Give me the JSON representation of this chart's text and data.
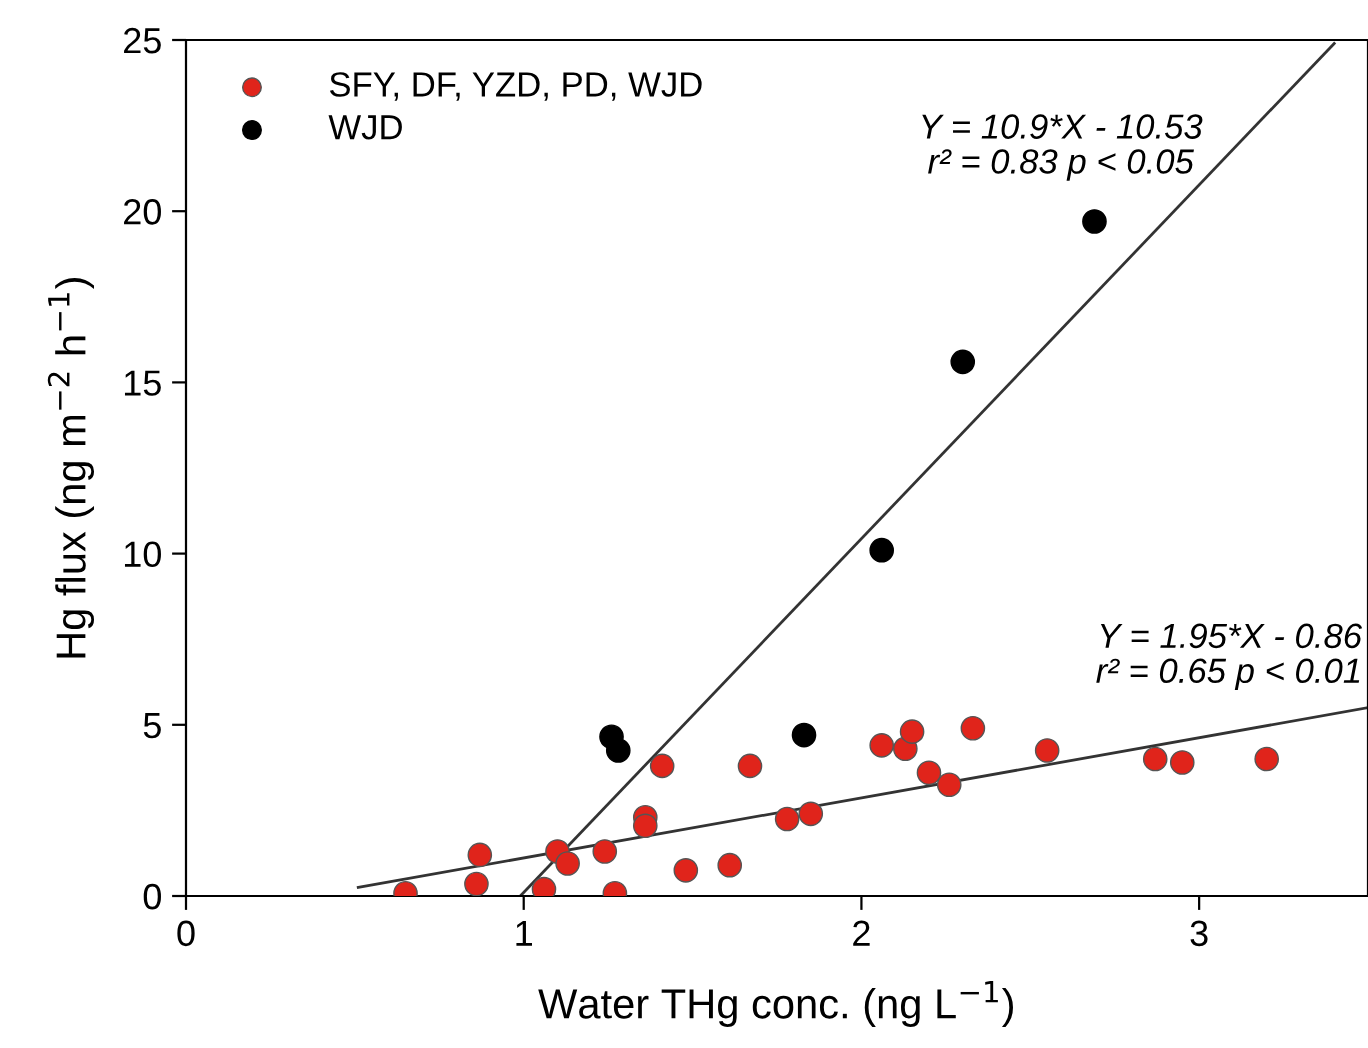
{
  "chart_data": {
    "type": "scatter",
    "xlabel": "Water THg conc. (ng L$^{−1}$)",
    "ylabel": "Hg flux (ng m$^{−2}$ h$^{−1}$)",
    "xlim": [
      0,
      3.5
    ],
    "ylim": [
      0,
      25
    ],
    "xticks": [
      0,
      1,
      2,
      3
    ],
    "yticks": [
      0,
      5,
      10,
      15,
      20,
      25
    ],
    "legend": "top left",
    "marker": "circle",
    "series": [
      {
        "name": "SFY, DF, YZD, PD, WJD",
        "color": "#e0241b",
        "x": [
          0.65,
          0.87,
          0.86,
          1.06,
          1.1,
          1.13,
          1.24,
          1.27,
          1.36,
          1.36,
          1.41,
          1.48,
          1.61,
          1.67,
          1.78,
          1.85,
          2.06,
          2.13,
          2.15,
          2.2,
          2.26,
          2.33,
          2.55,
          2.87,
          2.95,
          3.2
        ],
        "values": [
          0.08,
          1.2,
          0.35,
          0.2,
          1.3,
          0.95,
          1.3,
          0.08,
          2.3,
          2.05,
          3.8,
          0.75,
          0.9,
          3.8,
          2.25,
          2.4,
          4.4,
          4.3,
          4.8,
          3.6,
          3.25,
          4.9,
          4.25,
          4.0,
          3.9,
          4.0
        ]
      },
      {
        "name": "WJD",
        "color": "#000000",
        "x": [
          1.26,
          1.28,
          1.83,
          2.06,
          2.3,
          2.69
        ],
        "values": [
          4.65,
          4.25,
          4.7,
          10.1,
          15.6,
          19.7
        ]
      },
      {
        "type": "line",
        "color": "#333333",
        "marker": "none",
        "x": [
          0.51,
          3.5
        ],
        "values": [
          0.25,
          5.5
        ]
      },
      {
        "type": "line",
        "color": "#333333",
        "marker": "none",
        "x": [
          0.99,
          3.4
        ],
        "values": [
          0,
          24.9
        ]
      }
    ],
    "annotations": [
      "Y = 10.9*X - 10.53\nr² = 0.83 p < 0.05",
      "Y = 1.95*X - 0.86\nr² = 0.65 p < 0.01"
    ]
  }
}
